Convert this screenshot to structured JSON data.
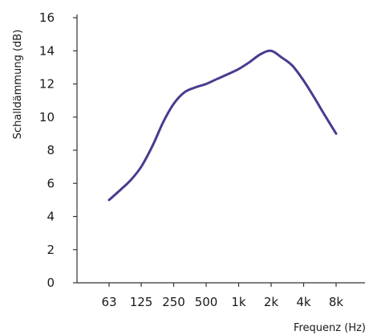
{
  "chart_data": {
    "type": "line",
    "title": "",
    "xlabel": "Frequenz (Hz)",
    "ylabel": "Schalldämmung (dB)",
    "x_scale": "log",
    "x_ticks": [
      {
        "value": 63,
        "label": "63"
      },
      {
        "value": 125,
        "label": "125"
      },
      {
        "value": 250,
        "label": "250"
      },
      {
        "value": 500,
        "label": "500"
      },
      {
        "value": 1000,
        "label": "1k"
      },
      {
        "value": 2000,
        "label": "2k"
      },
      {
        "value": 4000,
        "label": "4k"
      },
      {
        "value": 8000,
        "label": "8k"
      }
    ],
    "y_ticks": [
      0,
      2,
      4,
      6,
      8,
      10,
      12,
      14,
      16
    ],
    "ylim": [
      0,
      16
    ],
    "grid": false,
    "legend": "none",
    "series": [
      {
        "color": "#4b3a8f",
        "x": [
          63,
          80,
          100,
          125,
          160,
          200,
          250,
          315,
          400,
          500,
          630,
          800,
          1000,
          1250,
          1600,
          2000,
          2500,
          3150,
          4000,
          5000,
          6300,
          8000
        ],
        "y": [
          5.0,
          5.6,
          6.2,
          7.0,
          8.3,
          9.7,
          10.8,
          11.5,
          11.8,
          12.0,
          12.3,
          12.6,
          12.9,
          13.3,
          13.8,
          14.0,
          13.6,
          13.1,
          12.2,
          11.2,
          10.1,
          9.0
        ]
      }
    ]
  }
}
